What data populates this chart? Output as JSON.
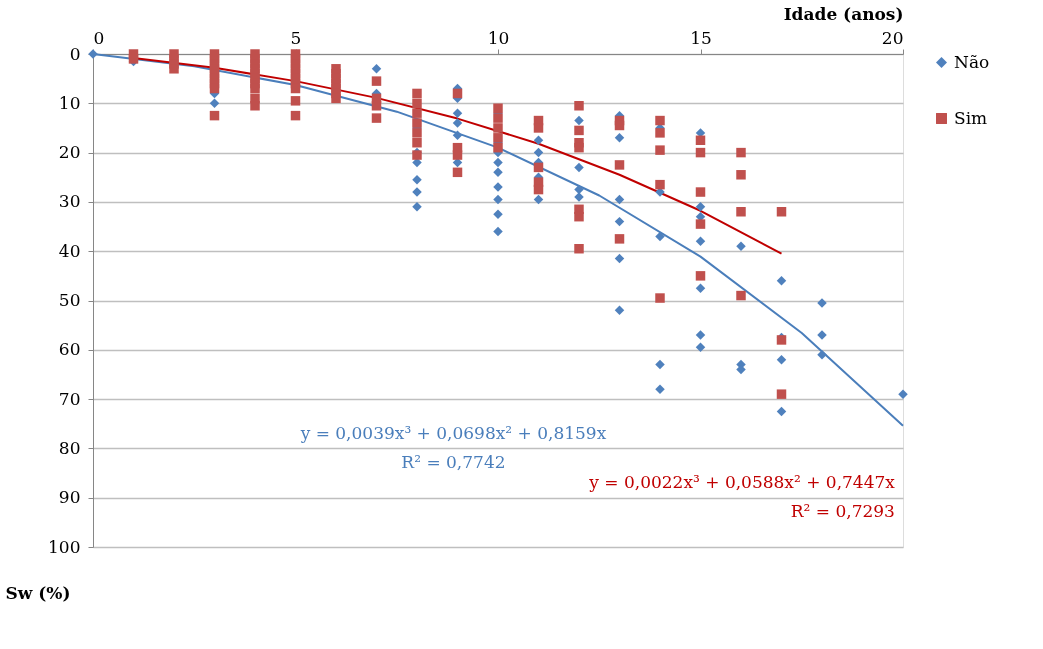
{
  "chart_data": {
    "type": "scatter",
    "xlabel": "Idade (anos)",
    "ylabel": "Sw (%)",
    "xlim": [
      0,
      20
    ],
    "xticks": [
      0,
      5,
      10,
      15,
      20
    ],
    "ylim": [
      100,
      0
    ],
    "yticks": [
      0,
      10,
      20,
      30,
      40,
      50,
      60,
      70,
      80,
      90,
      100
    ],
    "grid": "y",
    "legend": "right",
    "series": [
      {
        "name": "Não",
        "color": "#4f81bd",
        "marker": "diamond",
        "x": [
          0,
          1,
          3,
          3,
          7,
          7,
          8,
          8,
          8,
          8,
          8,
          8,
          9,
          9,
          9,
          9,
          9,
          9,
          10,
          10,
          10,
          10,
          10,
          10,
          10,
          10,
          10,
          11,
          11,
          11,
          11,
          11,
          12,
          12,
          12,
          12,
          13,
          13,
          13,
          13,
          13,
          13,
          14,
          14,
          14,
          14,
          14,
          15,
          15,
          15,
          15,
          15,
          15,
          15,
          16,
          16,
          16,
          17,
          17,
          17,
          17,
          18,
          18,
          18,
          20
        ],
        "values": [
          0,
          1.5,
          8,
          10,
          3,
          8,
          15,
          20,
          22,
          25.5,
          28,
          31,
          7,
          9,
          12,
          14,
          16.5,
          22,
          12,
          18,
          20,
          22,
          24,
          27,
          29.5,
          32.5,
          36,
          17.5,
          20,
          22,
          25,
          29.5,
          13.5,
          23,
          27.5,
          29,
          12.5,
          17,
          29.5,
          34,
          41.5,
          52,
          15,
          28,
          37,
          63,
          68,
          16,
          31,
          33,
          38,
          47.5,
          57,
          59.5,
          39,
          63,
          64,
          46,
          57.5,
          62,
          72.5,
          50.5,
          57,
          61,
          69
        ]
      },
      {
        "name": "Sim",
        "color": "#c0504d",
        "marker": "square",
        "x": [
          1,
          1,
          2,
          2,
          2,
          2,
          3,
          3,
          3,
          3,
          3,
          3,
          3,
          3,
          3,
          4,
          4,
          4,
          4,
          4,
          4,
          4,
          4,
          4,
          4,
          5,
          5,
          5,
          5,
          5,
          5,
          5,
          5,
          5,
          5,
          6,
          6,
          6,
          6,
          6,
          6,
          6,
          7,
          7,
          7,
          7,
          8,
          8,
          8,
          8,
          8,
          8,
          8,
          9,
          9,
          9,
          9,
          10,
          10,
          10,
          10,
          10,
          11,
          11,
          11,
          11,
          11,
          12,
          12,
          12,
          12,
          12,
          12,
          12,
          13,
          13,
          13,
          13,
          14,
          14,
          14,
          14,
          14,
          15,
          15,
          15,
          15,
          15,
          16,
          16,
          16,
          16,
          17,
          17,
          17
        ],
        "values": [
          0,
          1,
          0,
          1,
          2,
          3,
          0,
          1,
          2,
          3,
          4,
          5,
          6,
          7,
          12.5,
          0,
          1,
          2,
          3,
          4,
          5,
          6,
          7,
          9,
          10.5,
          0,
          1,
          2,
          3,
          4,
          5,
          6,
          7,
          9.5,
          12.5,
          3,
          4,
          5,
          6,
          7,
          8,
          9,
          5.5,
          9,
          10.5,
          13,
          8,
          10,
          12,
          14,
          16,
          18,
          20.5,
          8,
          19,
          20.5,
          24,
          11,
          13,
          15,
          17,
          19,
          13.5,
          15,
          23,
          26,
          27.5,
          10.5,
          15.5,
          18,
          19,
          31.5,
          33,
          39.5,
          13.5,
          14.5,
          22.5,
          37.5,
          13.5,
          16,
          19.5,
          26.5,
          49.5,
          17.5,
          20,
          28,
          34.5,
          45,
          20,
          24.5,
          32,
          49,
          32,
          58,
          69
        ]
      },
      {
        "type": "line",
        "color": "#4a7ebb",
        "x": [
          0,
          2.5,
          5,
          7.5,
          10,
          12.5,
          15,
          17.5,
          20
        ],
        "values": [
          0,
          2.5,
          6.3,
          11.7,
          19.0,
          28.7,
          41.1,
          56.6,
          75.4
        ]
      },
      {
        "type": "line",
        "color": "#c00000",
        "x": [
          1,
          3,
          5,
          7,
          9,
          11,
          13,
          15,
          17
        ],
        "values": [
          0.8,
          2.8,
          5.5,
          8.9,
          13.1,
          18.2,
          24.5,
          31.8,
          40.5
        ]
      }
    ],
    "annotations": [
      "y = 0,0039x³ + 0,0698x² + 0,8159x",
      "R² = 0,7742",
      "y = 0,0022x³ + 0,0588x² + 0,7447x",
      "R² = 0,7293"
    ]
  }
}
